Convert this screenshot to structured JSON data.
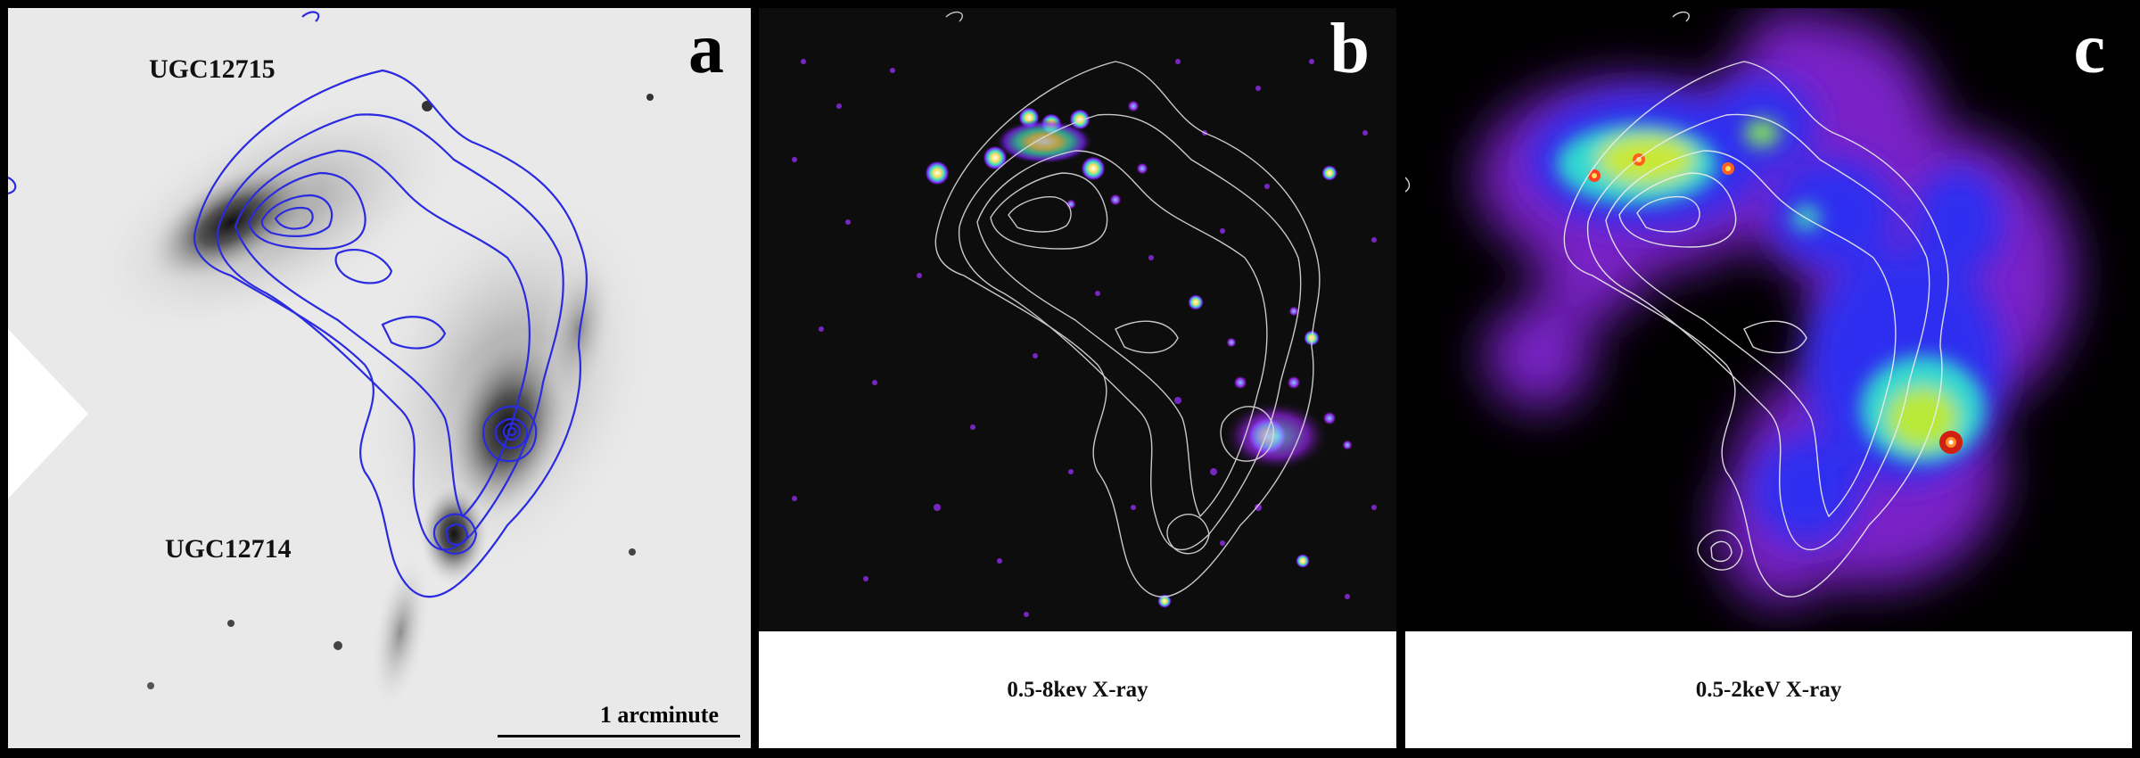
{
  "panels": {
    "a": {
      "letter": "a",
      "labels": {
        "upper_galaxy": "UGC12715",
        "lower_galaxy": "UGC12714"
      },
      "scale_bar": "1 arcminute",
      "contour_color": "#2a2ae0"
    },
    "b": {
      "letter": "b",
      "caption": "0.5-8kev X-ray",
      "contour_color": "#ffffff"
    },
    "c": {
      "letter": "c",
      "caption": "0.5-2keV X-ray",
      "contour_color": "#ffffff"
    }
  }
}
